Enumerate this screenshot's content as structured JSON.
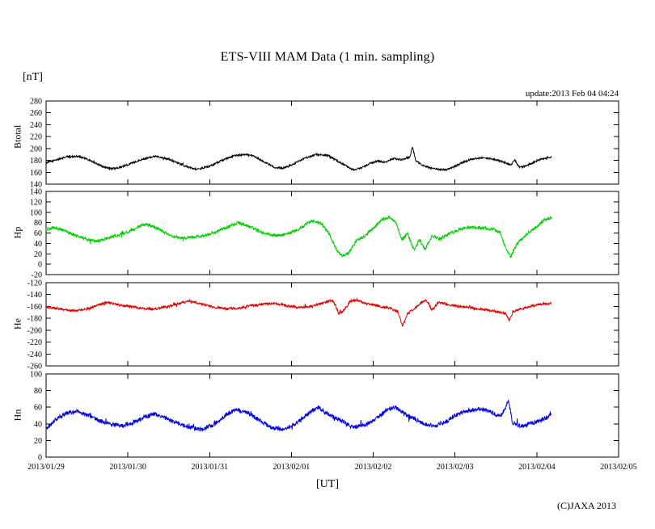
{
  "page": {
    "title": "ETS-VIII MAM Data (1 min. sampling)",
    "unit_label": "[nT]",
    "update_text": "update:2013 Feb 04 04:24",
    "xaxis_label": "[UT]",
    "credit": "(C)JAXA 2013"
  },
  "chart_data": {
    "type": "line",
    "title": "ETS-VIII MAM Data (1 min. sampling)",
    "xlabel": "[UT]",
    "ylabel": "[nT]",
    "grid": false,
    "legend": "none",
    "x_unit": "days since 2013/01/29 00:00 UT",
    "x_range_days": [
      0,
      7
    ],
    "data_end_day": 6.18,
    "x_tick_labels": [
      "2013/01/29",
      "2013/01/30",
      "2013/01/31",
      "2013/02/01",
      "2013/02/02",
      "2013/02/03",
      "2013/02/04",
      "2013/02/05"
    ],
    "panels": [
      {
        "name": "Btotal",
        "color": "#000000",
        "ylim": [
          140,
          280
        ],
        "ytick_step": 20,
        "noise": 1.5,
        "points": [
          [
            0.0,
            176
          ],
          [
            0.1,
            180
          ],
          [
            0.25,
            186
          ],
          [
            0.4,
            187
          ],
          [
            0.5,
            182
          ],
          [
            0.6,
            176
          ],
          [
            0.7,
            169
          ],
          [
            0.8,
            166
          ],
          [
            0.9,
            168
          ],
          [
            1.0,
            173
          ],
          [
            1.1,
            178
          ],
          [
            1.25,
            185
          ],
          [
            1.35,
            187
          ],
          [
            1.5,
            182
          ],
          [
            1.6,
            176
          ],
          [
            1.75,
            168
          ],
          [
            1.85,
            165
          ],
          [
            2.0,
            170
          ],
          [
            2.15,
            180
          ],
          [
            2.3,
            188
          ],
          [
            2.45,
            190
          ],
          [
            2.55,
            186
          ],
          [
            2.7,
            175
          ],
          [
            2.8,
            168
          ],
          [
            2.9,
            167
          ],
          [
            3.0,
            172
          ],
          [
            3.15,
            183
          ],
          [
            3.3,
            190
          ],
          [
            3.45,
            188
          ],
          [
            3.55,
            180
          ],
          [
            3.65,
            172
          ],
          [
            3.75,
            164
          ],
          [
            3.85,
            167
          ],
          [
            3.95,
            174
          ],
          [
            4.05,
            179
          ],
          [
            4.15,
            177
          ],
          [
            4.25,
            183
          ],
          [
            4.35,
            181
          ],
          [
            4.45,
            186
          ],
          [
            4.48,
            203
          ],
          [
            4.52,
            180
          ],
          [
            4.6,
            172
          ],
          [
            4.7,
            167
          ],
          [
            4.8,
            165
          ],
          [
            4.9,
            164
          ],
          [
            5.0,
            170
          ],
          [
            5.1,
            177
          ],
          [
            5.2,
            182
          ],
          [
            5.35,
            185
          ],
          [
            5.5,
            181
          ],
          [
            5.6,
            177
          ],
          [
            5.68,
            172
          ],
          [
            5.73,
            180
          ],
          [
            5.78,
            169
          ],
          [
            5.85,
            170
          ],
          [
            5.95,
            176
          ],
          [
            6.05,
            182
          ],
          [
            6.18,
            186
          ]
        ]
      },
      {
        "name": "Hp",
        "color": "#00cc00",
        "ylim": [
          -20,
          140
        ],
        "ytick_step": 20,
        "noise": 3.0,
        "points": [
          [
            0.0,
            67
          ],
          [
            0.1,
            70
          ],
          [
            0.2,
            66
          ],
          [
            0.35,
            56
          ],
          [
            0.5,
            48
          ],
          [
            0.62,
            44
          ],
          [
            0.75,
            50
          ],
          [
            0.88,
            56
          ],
          [
            1.0,
            62
          ],
          [
            1.12,
            72
          ],
          [
            1.22,
            77
          ],
          [
            1.35,
            70
          ],
          [
            1.5,
            57
          ],
          [
            1.65,
            50
          ],
          [
            1.8,
            52
          ],
          [
            1.95,
            56
          ],
          [
            2.1,
            64
          ],
          [
            2.25,
            74
          ],
          [
            2.35,
            80
          ],
          [
            2.5,
            72
          ],
          [
            2.65,
            60
          ],
          [
            2.8,
            55
          ],
          [
            2.95,
            58
          ],
          [
            3.1,
            68
          ],
          [
            3.25,
            84
          ],
          [
            3.35,
            80
          ],
          [
            3.45,
            62
          ],
          [
            3.55,
            28
          ],
          [
            3.62,
            15
          ],
          [
            3.7,
            22
          ],
          [
            3.8,
            45
          ],
          [
            3.9,
            55
          ],
          [
            4.0,
            68
          ],
          [
            4.1,
            85
          ],
          [
            4.2,
            91
          ],
          [
            4.28,
            78
          ],
          [
            4.35,
            48
          ],
          [
            4.42,
            58
          ],
          [
            4.5,
            28
          ],
          [
            4.57,
            48
          ],
          [
            4.63,
            28
          ],
          [
            4.72,
            55
          ],
          [
            4.82,
            48
          ],
          [
            4.92,
            58
          ],
          [
            5.05,
            66
          ],
          [
            5.15,
            71
          ],
          [
            5.3,
            70
          ],
          [
            5.45,
            68
          ],
          [
            5.55,
            62
          ],
          [
            5.62,
            30
          ],
          [
            5.68,
            14
          ],
          [
            5.76,
            40
          ],
          [
            5.88,
            58
          ],
          [
            6.0,
            72
          ],
          [
            6.1,
            86
          ],
          [
            6.18,
            89
          ]
        ]
      },
      {
        "name": "He",
        "color": "#dd0000",
        "ylim": [
          -260,
          -120
        ],
        "ytick_step": 20,
        "noise": 2.0,
        "points": [
          [
            0.0,
            -161
          ],
          [
            0.15,
            -164
          ],
          [
            0.3,
            -167
          ],
          [
            0.45,
            -166
          ],
          [
            0.55,
            -162
          ],
          [
            0.65,
            -157
          ],
          [
            0.75,
            -153
          ],
          [
            0.9,
            -158
          ],
          [
            1.05,
            -160
          ],
          [
            1.2,
            -164
          ],
          [
            1.35,
            -164
          ],
          [
            1.5,
            -160
          ],
          [
            1.65,
            -154
          ],
          [
            1.75,
            -151
          ],
          [
            1.9,
            -156
          ],
          [
            2.05,
            -161
          ],
          [
            2.2,
            -164
          ],
          [
            2.35,
            -163
          ],
          [
            2.5,
            -159
          ],
          [
            2.65,
            -156
          ],
          [
            2.8,
            -155
          ],
          [
            2.95,
            -159
          ],
          [
            3.1,
            -162
          ],
          [
            3.25,
            -160
          ],
          [
            3.4,
            -154
          ],
          [
            3.5,
            -149
          ],
          [
            3.58,
            -172
          ],
          [
            3.65,
            -166
          ],
          [
            3.72,
            -151
          ],
          [
            3.8,
            -149
          ],
          [
            3.9,
            -155
          ],
          [
            4.05,
            -159
          ],
          [
            4.2,
            -163
          ],
          [
            4.3,
            -168
          ],
          [
            4.36,
            -194
          ],
          [
            4.42,
            -172
          ],
          [
            4.5,
            -164
          ],
          [
            4.58,
            -154
          ],
          [
            4.65,
            -150
          ],
          [
            4.72,
            -166
          ],
          [
            4.8,
            -153
          ],
          [
            4.95,
            -158
          ],
          [
            5.1,
            -161
          ],
          [
            5.25,
            -163
          ],
          [
            5.4,
            -166
          ],
          [
            5.52,
            -169
          ],
          [
            5.62,
            -172
          ],
          [
            5.66,
            -184
          ],
          [
            5.72,
            -168
          ],
          [
            5.85,
            -163
          ],
          [
            5.95,
            -159
          ],
          [
            6.05,
            -156
          ],
          [
            6.18,
            -155
          ]
        ]
      },
      {
        "name": "Hn",
        "color": "#0000dd",
        "ylim": [
          0,
          100
        ],
        "ytick_step": 20,
        "noise": 2.5,
        "points": [
          [
            0.0,
            34
          ],
          [
            0.12,
            45
          ],
          [
            0.25,
            53
          ],
          [
            0.4,
            55
          ],
          [
            0.52,
            50
          ],
          [
            0.65,
            44
          ],
          [
            0.8,
            39
          ],
          [
            0.95,
            38
          ],
          [
            1.05,
            41
          ],
          [
            1.2,
            48
          ],
          [
            1.32,
            52
          ],
          [
            1.45,
            47
          ],
          [
            1.6,
            41
          ],
          [
            1.75,
            36
          ],
          [
            1.9,
            33
          ],
          [
            2.05,
            39
          ],
          [
            2.2,
            51
          ],
          [
            2.32,
            57
          ],
          [
            2.45,
            54
          ],
          [
            2.6,
            45
          ],
          [
            2.75,
            36
          ],
          [
            2.9,
            33
          ],
          [
            3.05,
            40
          ],
          [
            3.2,
            52
          ],
          [
            3.33,
            60
          ],
          [
            3.45,
            52
          ],
          [
            3.6,
            44
          ],
          [
            3.75,
            36
          ],
          [
            3.9,
            38
          ],
          [
            4.05,
            47
          ],
          [
            4.18,
            58
          ],
          [
            4.28,
            60
          ],
          [
            4.38,
            52
          ],
          [
            4.5,
            46
          ],
          [
            4.62,
            40
          ],
          [
            4.75,
            38
          ],
          [
            4.88,
            42
          ],
          [
            5.0,
            50
          ],
          [
            5.15,
            55
          ],
          [
            5.3,
            58
          ],
          [
            5.45,
            54
          ],
          [
            5.55,
            48
          ],
          [
            5.62,
            60
          ],
          [
            5.65,
            70
          ],
          [
            5.7,
            42
          ],
          [
            5.8,
            37
          ],
          [
            5.92,
            40
          ],
          [
            6.02,
            43
          ],
          [
            6.12,
            48
          ],
          [
            6.18,
            50
          ]
        ]
      }
    ]
  }
}
